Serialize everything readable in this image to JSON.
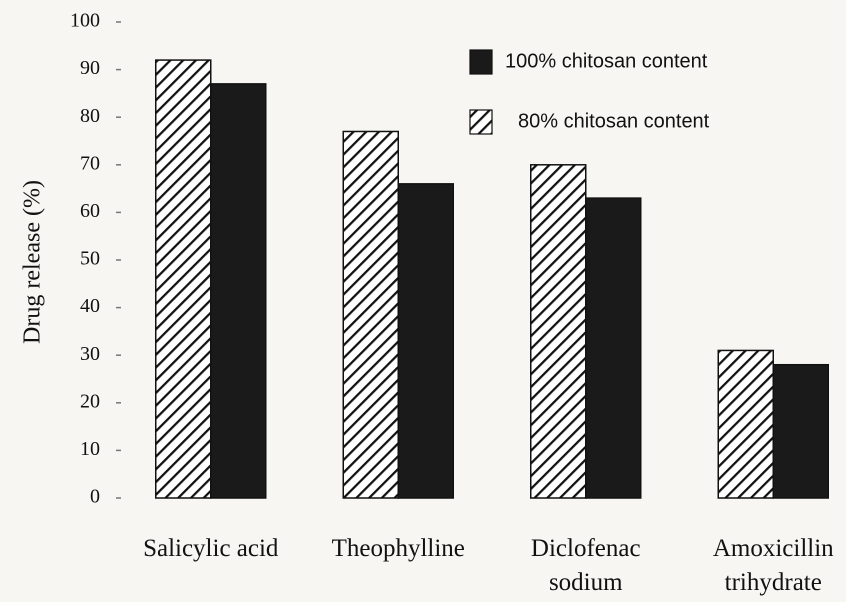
{
  "chart_data": {
    "type": "bar",
    "ylabel": "Drug release (%)",
    "categories": [
      "Salicylic acid",
      "Theophylline",
      "Diclofenac\nsodium",
      "Amoxicillin\ntrihydrate"
    ],
    "series": [
      {
        "name": "100% chitosan content",
        "color": "#1a1a1a",
        "hatch": false,
        "values": [
          87,
          66,
          63,
          28
        ]
      },
      {
        "name": "80% chitosan content",
        "color": "#1a1a1a",
        "hatch": true,
        "values": [
          92,
          77,
          70,
          31
        ]
      }
    ],
    "ylim": [
      0,
      100
    ],
    "yticks": [
      0,
      10,
      20,
      30,
      40,
      50,
      60,
      70,
      80,
      90,
      100
    ],
    "grid": false
  }
}
